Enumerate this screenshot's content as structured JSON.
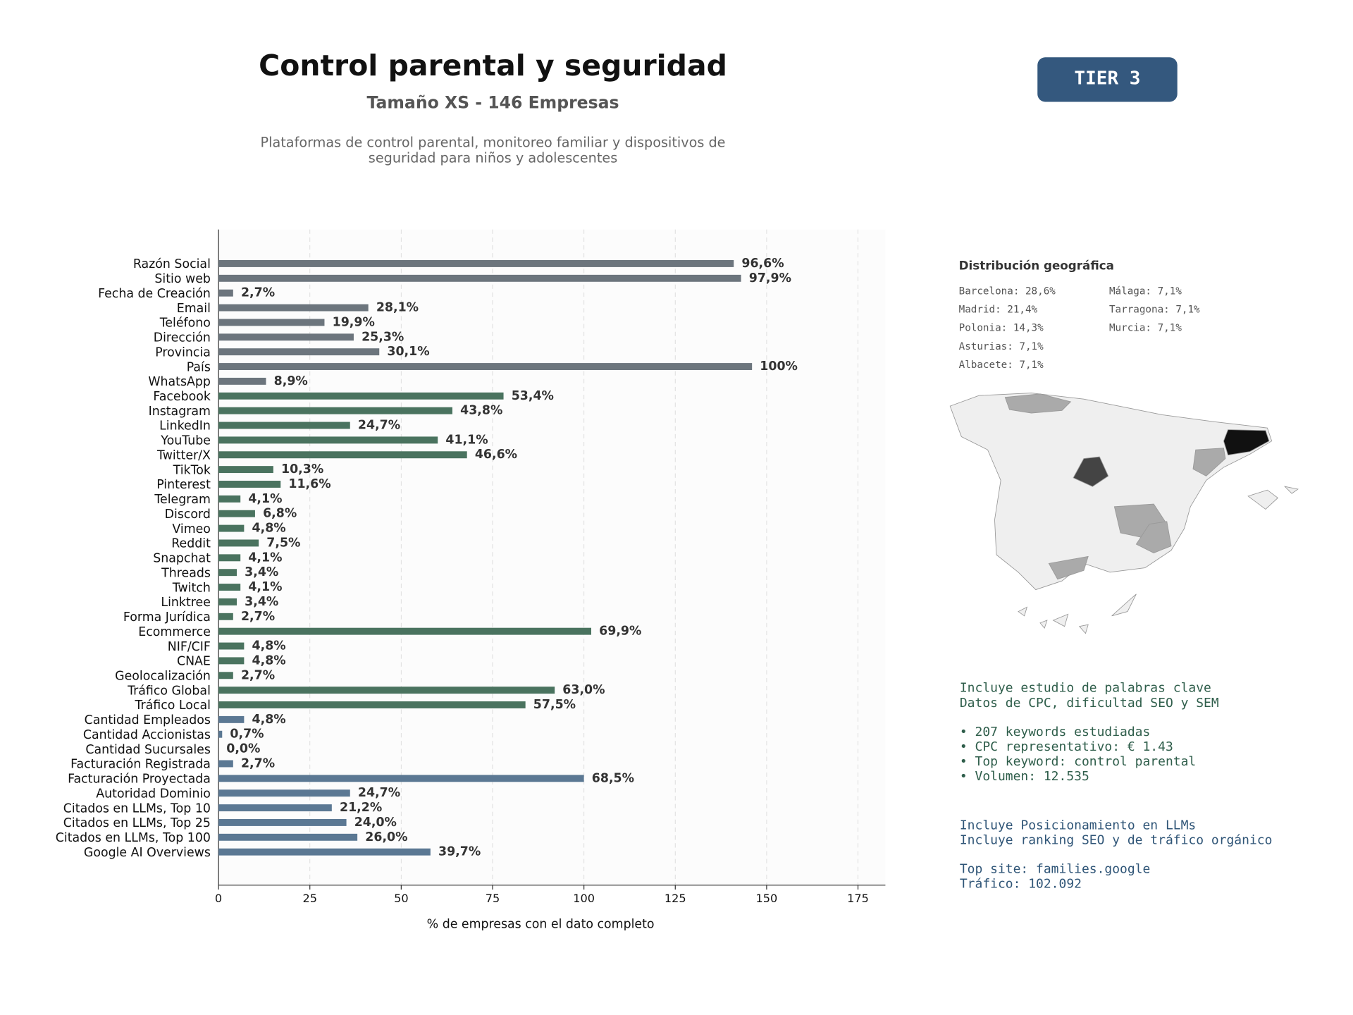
{
  "header": {
    "title": "Control parental y seguridad",
    "subtitle": "Tamaño XS - 146 Empresas",
    "description_lines": [
      "Plataformas de control parental, monitoreo familiar y dispositivos de",
      "seguridad para niños y adolescentes"
    ],
    "badge": "TIER 3"
  },
  "chart_data": {
    "type": "bar",
    "orientation": "horizontal",
    "categories": [
      "Razón Social",
      "Sitio web",
      "Fecha de Creación",
      "Email",
      "Teléfono",
      "Dirección",
      "Provincia",
      "País",
      "WhatsApp",
      "Facebook",
      "Instagram",
      "LinkedIn",
      "YouTube",
      "Twitter/X",
      "TikTok",
      "Pinterest",
      "Telegram",
      "Discord",
      "Vimeo",
      "Reddit",
      "Snapchat",
      "Threads",
      "Twitch",
      "Linktree",
      "Forma Jurídica",
      "Ecommerce",
      "NIF/CIF",
      "CNAE",
      "Geolocalización",
      "Tráfico Global",
      "Tráfico Local",
      "Cantidad Empleados",
      "Cantidad Accionistas",
      "Cantidad Sucursales",
      "Facturación Registrada",
      "Facturación Proyectada",
      "Autoridad Dominio",
      "Citados en LLMs, Top 10",
      "Citados en LLMs, Top 25",
      "Citados en LLMs, Top 100",
      "Google AI Overviews"
    ],
    "values": [
      141,
      143,
      4,
      41,
      29,
      37,
      44,
      146,
      13,
      78,
      64,
      36,
      60,
      68,
      15,
      17,
      6,
      10,
      7,
      11,
      6,
      5,
      6,
      5,
      4,
      102,
      7,
      7,
      4,
      92,
      84,
      7,
      1,
      0,
      4,
      100,
      36,
      31,
      35,
      38,
      58
    ],
    "value_labels": [
      "96,6%",
      "97,9%",
      "2,7%",
      "28,1%",
      "19,9%",
      "25,3%",
      "30,1%",
      "100%",
      "8,9%",
      "53,4%",
      "43,8%",
      "24,7%",
      "41,1%",
      "46,6%",
      "10,3%",
      "11,6%",
      "4,1%",
      "6,8%",
      "4,8%",
      "7,5%",
      "4,1%",
      "3,4%",
      "4,1%",
      "3,4%",
      "2,7%",
      "69,9%",
      "4,8%",
      "4,8%",
      "2,7%",
      "63,0%",
      "57,5%",
      "4,8%",
      "0,7%",
      "0,0%",
      "2,7%",
      "68,5%",
      "24,7%",
      "21,2%",
      "24,0%",
      "26,0%",
      "39,7%"
    ],
    "colors": [
      "#6c757d",
      "#6c757d",
      "#6c757d",
      "#6c757d",
      "#6c757d",
      "#6c757d",
      "#6c757d",
      "#6c757d",
      "#6c757d",
      "#4a735f",
      "#4a735f",
      "#4a735f",
      "#4a735f",
      "#4a735f",
      "#4a735f",
      "#4a735f",
      "#4a735f",
      "#4a735f",
      "#4a735f",
      "#4a735f",
      "#4a735f",
      "#4a735f",
      "#4a735f",
      "#4a735f",
      "#4a735f",
      "#4a735f",
      "#4a735f",
      "#4a735f",
      "#4a735f",
      "#4a735f",
      "#4a735f",
      "#5b7893",
      "#5b7893",
      "#5b7893",
      "#5b7893",
      "#5b7893",
      "#5b7893",
      "#5b7893",
      "#5b7893",
      "#5b7893",
      "#5b7893"
    ],
    "xlabel": "% de empresas con el dato completo",
    "xlim": [
      0,
      182.5
    ],
    "xticks": [
      0,
      25,
      50,
      75,
      100,
      125,
      150,
      175
    ],
    "grid": true
  },
  "geo": {
    "title": "Distribución geográfica",
    "entries": [
      "Barcelona: 28,6%",
      "Madrid: 21,4%",
      "Polonia: 14,3%",
      "Asturias: 7,1%",
      "Albacete: 7,1%",
      "Málaga: 7,1%",
      "Tarragona: 7,1%",
      "Murcia: 7,1%"
    ]
  },
  "keywords": {
    "paragraphs": [
      [
        "Incluye estudio de palabras clave",
        "Datos de CPC, dificultad SEO y SEM"
      ],
      [
        "• 207 keywords estudiadas",
        "• CPC representativo: € 1.43",
        "• Top keyword: control parental",
        "• Volumen: 12.535"
      ]
    ]
  },
  "llm": {
    "paragraphs": [
      [
        "Incluye Posicionamiento en LLMs",
        "Incluye ranking SEO y de tráfico orgánico"
      ],
      [
        "Top site: families.google",
        "Tráfico: 102.092"
      ]
    ]
  }
}
